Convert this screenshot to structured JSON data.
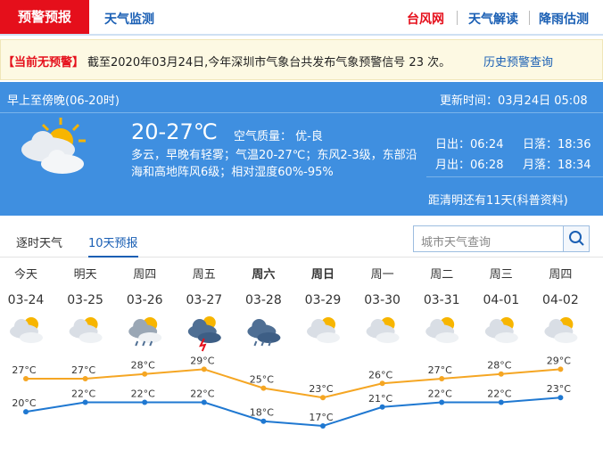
{
  "tabs": {
    "active": "预警预报",
    "monitor": "天气监测",
    "links": [
      "台风网",
      "天气解读",
      "降雨估测"
    ]
  },
  "alert": {
    "status": "【当前无预警】",
    "text": "截至2020年03月24日,今年深圳市气象台共发布气象预警信号 23 次。",
    "link": "历史预警查询"
  },
  "today": {
    "period": "早上至傍晚(06-20时)",
    "updated": "更新时间：03月24日 05:08",
    "temp": "20-27℃",
    "air_quality": "空气质量： 优-良",
    "description": "多云，早晚有轻雾；气温20-27℃；东风2-3级，东部沿海和高地阵风6级；相对湿度60%-95%",
    "sun_moon": [
      "日出：06:24",
      "日落：18:36",
      "月出：06:28",
      "月落：18:34"
    ],
    "festival": "距清明还有11天(科普资料)"
  },
  "forecast_tabs": [
    "逐时天气",
    "10天预报"
  ],
  "search_placeholder": "城市天气查询",
  "days": [
    {
      "weekday": "今天",
      "date": "03-24",
      "high": 27,
      "high_label": "27°C",
      "low": 20,
      "low_label": "20°C"
    },
    {
      "weekday": "明天",
      "date": "03-25",
      "high": 27,
      "high_label": "27°C",
      "low": 22,
      "low_label": "22°C"
    },
    {
      "weekday": "周四",
      "date": "03-26",
      "high": 28,
      "high_label": "28°C",
      "low": 22,
      "low_label": "22°C"
    },
    {
      "weekday": "周五",
      "date": "03-27",
      "high": 29,
      "high_label": "29°C",
      "low": 22,
      "low_label": "22°C"
    },
    {
      "weekday": "周六",
      "date": "03-28",
      "high": 25,
      "high_label": "25°C",
      "low": 18,
      "low_label": "18°C"
    },
    {
      "weekday": "周日",
      "date": "03-29",
      "high": 23,
      "high_label": "23°C",
      "low": 17,
      "low_label": "17°C"
    },
    {
      "weekday": "周一",
      "date": "03-30",
      "high": 26,
      "high_label": "26°C",
      "low": 21,
      "low_label": "21°C"
    },
    {
      "weekday": "周二",
      "date": "03-31",
      "high": 27,
      "high_label": "27°C",
      "low": 22,
      "low_label": "22°C"
    },
    {
      "weekday": "周三",
      "date": "04-01",
      "high": 28,
      "high_label": "28°C",
      "low": 22,
      "low_label": "22°C"
    },
    {
      "weekday": "周四",
      "date": "04-02",
      "high": 29,
      "high_label": "29°C",
      "low": 23,
      "low_label": "23°C"
    }
  ]
}
